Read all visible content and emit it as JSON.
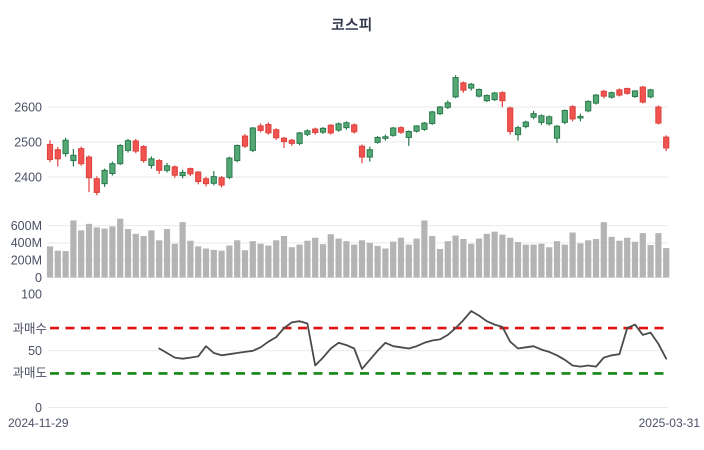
{
  "title": "코스피",
  "x_axis": {
    "start_label": "2024-11-29",
    "end_label": "2025-03-31"
  },
  "colors": {
    "up_fill": "#53a873",
    "up_edge": "#2b7a4d",
    "down_fill": "#f05350",
    "down_edge": "#de433d",
    "volume_bar": "#b4b4b4",
    "rsi_line": "#4b4b4b",
    "overbought": "#e31212",
    "oversold": "#128712",
    "grid": "#e9e9eb",
    "axis_text": "#4c5066",
    "title_text": "#33374b"
  },
  "chart_data": [
    {
      "type": "candlestick",
      "name": "price",
      "title": "코스피",
      "ylim": [
        2330,
        2710
      ],
      "yticks": [
        {
          "label": "2600",
          "value": 2600
        },
        {
          "label": "2500",
          "value": 2500
        },
        {
          "label": "2400",
          "value": 2400
        }
      ],
      "x_range": [
        "2024-11-29",
        "2025-03-31"
      ],
      "ohlc_format": [
        "open",
        "high",
        "low",
        "close"
      ],
      "ohlc": [
        [
          2493,
          2505,
          2443,
          2450
        ],
        [
          2478,
          2486,
          2430,
          2452
        ],
        [
          2467,
          2512,
          2458,
          2505
        ],
        [
          2447,
          2480,
          2430,
          2462
        ],
        [
          2481,
          2487,
          2432,
          2438
        ],
        [
          2457,
          2462,
          2357,
          2398
        ],
        [
          2395,
          2402,
          2348,
          2356
        ],
        [
          2381,
          2424,
          2372,
          2419
        ],
        [
          2410,
          2444,
          2404,
          2438
        ],
        [
          2438,
          2494,
          2434,
          2490
        ],
        [
          2476,
          2509,
          2470,
          2504
        ],
        [
          2503,
          2509,
          2468,
          2474
        ],
        [
          2487,
          2491,
          2441,
          2447
        ],
        [
          2433,
          2459,
          2424,
          2452
        ],
        [
          2447,
          2451,
          2409,
          2419
        ],
        [
          2419,
          2440,
          2413,
          2432
        ],
        [
          2429,
          2433,
          2398,
          2405
        ],
        [
          2404,
          2421,
          2396,
          2413
        ],
        [
          2424,
          2427,
          2403,
          2409
        ],
        [
          2414,
          2417,
          2379,
          2387
        ],
        [
          2395,
          2401,
          2373,
          2381
        ],
        [
          2382,
          2417,
          2376,
          2401
        ],
        [
          2398,
          2403,
          2370,
          2377
        ],
        [
          2399,
          2458,
          2394,
          2454
        ],
        [
          2447,
          2493,
          2442,
          2490
        ],
        [
          2517,
          2523,
          2483,
          2488
        ],
        [
          2476,
          2543,
          2471,
          2540
        ],
        [
          2546,
          2553,
          2528,
          2533
        ],
        [
          2550,
          2556,
          2521,
          2526
        ],
        [
          2535,
          2539,
          2506,
          2512
        ],
        [
          2511,
          2514,
          2483,
          2501
        ],
        [
          2505,
          2509,
          2489,
          2496
        ],
        [
          2496,
          2529,
          2491,
          2526
        ],
        [
          2522,
          2536,
          2517,
          2532
        ],
        [
          2537,
          2541,
          2521,
          2527
        ],
        [
          2528,
          2543,
          2523,
          2539
        ],
        [
          2548,
          2551,
          2521,
          2526
        ],
        [
          2534,
          2556,
          2529,
          2552
        ],
        [
          2541,
          2559,
          2535,
          2555
        ],
        [
          2549,
          2553,
          2524,
          2529
        ],
        [
          2488,
          2493,
          2439,
          2457
        ],
        [
          2457,
          2487,
          2444,
          2478
        ],
        [
          2499,
          2517,
          2495,
          2513
        ],
        [
          2511,
          2521,
          2504,
          2515
        ],
        [
          2519,
          2543,
          2515,
          2540
        ],
        [
          2541,
          2545,
          2523,
          2528
        ],
        [
          2513,
          2533,
          2489,
          2530
        ],
        [
          2531,
          2548,
          2527,
          2546
        ],
        [
          2536,
          2557,
          2532,
          2554
        ],
        [
          2553,
          2589,
          2549,
          2586
        ],
        [
          2581,
          2603,
          2577,
          2600
        ],
        [
          2599,
          2619,
          2594,
          2612
        ],
        [
          2629,
          2691,
          2625,
          2684
        ],
        [
          2669,
          2673,
          2641,
          2648
        ],
        [
          2654,
          2669,
          2647,
          2665
        ],
        [
          2631,
          2653,
          2627,
          2650
        ],
        [
          2618,
          2636,
          2614,
          2633
        ],
        [
          2621,
          2643,
          2617,
          2640
        ],
        [
          2641,
          2645,
          2599,
          2618
        ],
        [
          2597,
          2601,
          2521,
          2530
        ],
        [
          2521,
          2546,
          2504,
          2541
        ],
        [
          2544,
          2561,
          2539,
          2557
        ],
        [
          2571,
          2589,
          2565,
          2581
        ],
        [
          2556,
          2579,
          2549,
          2575
        ],
        [
          2552,
          2576,
          2547,
          2572
        ],
        [
          2511,
          2549,
          2497,
          2545
        ],
        [
          2556,
          2593,
          2551,
          2590
        ],
        [
          2601,
          2605,
          2559,
          2566
        ],
        [
          2569,
          2581,
          2559,
          2573
        ],
        [
          2589,
          2619,
          2585,
          2616
        ],
        [
          2611,
          2637,
          2607,
          2634
        ],
        [
          2645,
          2649,
          2625,
          2631
        ],
        [
          2628,
          2644,
          2624,
          2641
        ],
        [
          2649,
          2653,
          2630,
          2634
        ],
        [
          2653,
          2655,
          2635,
          2639
        ],
        [
          2630,
          2648,
          2626,
          2646
        ],
        [
          2657,
          2660,
          2610,
          2614
        ],
        [
          2629,
          2652,
          2625,
          2649
        ],
        [
          2600,
          2604,
          2550,
          2554
        ],
        [
          2514,
          2519,
          2474,
          2483
        ]
      ]
    },
    {
      "type": "bar",
      "name": "volume",
      "unit": "M",
      "ylim": [
        0,
        700
      ],
      "yticks": [
        {
          "label": "600M",
          "value": 600
        },
        {
          "label": "400M",
          "value": 400
        },
        {
          "label": "200M",
          "value": 200
        },
        {
          "label": "0",
          "value": 0
        }
      ],
      "values": [
        360,
        310,
        305,
        660,
        545,
        620,
        580,
        565,
        590,
        680,
        560,
        505,
        480,
        545,
        430,
        560,
        390,
        640,
        425,
        360,
        335,
        320,
        310,
        370,
        430,
        315,
        420,
        390,
        370,
        430,
        480,
        350,
        380,
        425,
        460,
        385,
        500,
        450,
        420,
        380,
        430,
        400,
        365,
        335,
        415,
        460,
        380,
        450,
        660,
        480,
        330,
        420,
        485,
        445,
        390,
        450,
        505,
        530,
        495,
        460,
        410,
        380,
        380,
        390,
        350,
        420,
        380,
        520,
        395,
        430,
        445,
        640,
        470,
        425,
        460,
        413,
        513,
        375,
        513,
        340
      ]
    },
    {
      "type": "line",
      "name": "rsi",
      "ylim": [
        0,
        100
      ],
      "yticks": [
        {
          "label": "100",
          "value": 100
        },
        {
          "label": "50",
          "value": 50
        },
        {
          "label": "0",
          "value": 0
        }
      ],
      "overbought": {
        "label": "과매수",
        "value": 70
      },
      "oversold": {
        "label": "과매도",
        "value": 30
      },
      "start_index": 14,
      "values": [
        52,
        48,
        44,
        43,
        44,
        45,
        54,
        48,
        46,
        47,
        48,
        49,
        50,
        53,
        58,
        62,
        70,
        75,
        76,
        74,
        37,
        44,
        52,
        57,
        55,
        52,
        34,
        42,
        50,
        57,
        54,
        53,
        52,
        54,
        57,
        59,
        60,
        64,
        70,
        77,
        85,
        81,
        76,
        73,
        71,
        58,
        52,
        53,
        54,
        51,
        49,
        46,
        42,
        37,
        36,
        37,
        36,
        44,
        46,
        47,
        70,
        73,
        64,
        66,
        56,
        43
      ]
    }
  ]
}
